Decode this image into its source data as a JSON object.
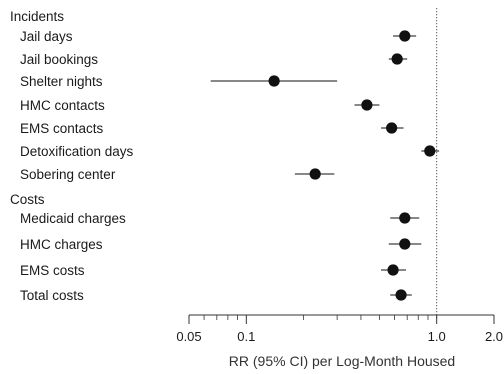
{
  "chart_data": {
    "type": "scatter",
    "subtype": "forest-plot",
    "xscale": "log",
    "xlim": [
      0.05,
      2.0
    ],
    "reference_line": 1.0,
    "xlabel": "RR (95% CI) per Log-Month Housed",
    "xticks": [
      {
        "value": 0.05,
        "label": "0.05"
      },
      {
        "value": 0.1,
        "label": "0.1"
      },
      {
        "value": 1.0,
        "label": "1.0"
      },
      {
        "value": 2.0,
        "label": "2.0"
      }
    ],
    "minor_ticks": [
      0.06,
      0.07,
      0.08,
      0.09,
      0.2,
      0.3,
      0.4,
      0.5,
      0.6,
      0.7,
      0.8,
      0.9
    ],
    "groups": [
      {
        "name": "Incidents",
        "rows": [
          {
            "label": "Jail days",
            "rr": 0.68,
            "lo": 0.59,
            "hi": 0.78
          },
          {
            "label": "Jail bookings",
            "rr": 0.62,
            "lo": 0.56,
            "hi": 0.7
          },
          {
            "label": "Shelter nights",
            "rr": 0.14,
            "lo": 0.065,
            "hi": 0.3
          },
          {
            "label": "HMC contacts",
            "rr": 0.43,
            "lo": 0.37,
            "hi": 0.5
          },
          {
            "label": "EMS contacts",
            "rr": 0.58,
            "lo": 0.51,
            "hi": 0.67
          },
          {
            "label": "Detoxification days",
            "rr": 0.92,
            "lo": 0.83,
            "hi": 1.03
          },
          {
            "label": "Sobering center",
            "rr": 0.23,
            "lo": 0.18,
            "hi": 0.29
          }
        ]
      },
      {
        "name": "Costs",
        "rows": [
          {
            "label": "Medicaid charges",
            "rr": 0.68,
            "lo": 0.57,
            "hi": 0.81
          },
          {
            "label": "HMC charges",
            "rr": 0.68,
            "lo": 0.56,
            "hi": 0.83
          },
          {
            "label": "EMS costs",
            "rr": 0.59,
            "lo": 0.51,
            "hi": 0.69
          },
          {
            "label": "Total costs",
            "rr": 0.65,
            "lo": 0.57,
            "hi": 0.74
          }
        ]
      }
    ],
    "colors": {
      "marker": "#111111",
      "ci_line": "#111111",
      "axis": "#333333",
      "reference": "#555555"
    }
  }
}
